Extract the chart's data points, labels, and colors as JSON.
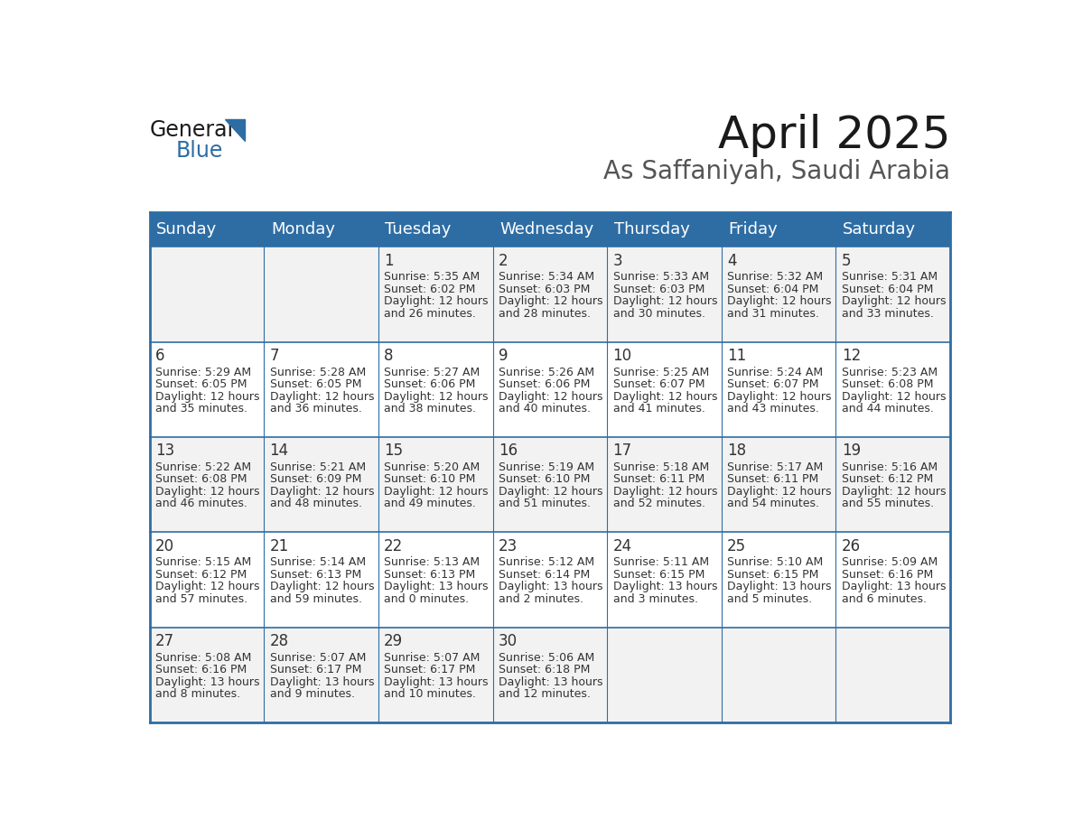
{
  "title": "April 2025",
  "subtitle": "As Saffaniyah, Saudi Arabia",
  "header_bg": "#2E6DA4",
  "header_text": "#FFFFFF",
  "row_bg_odd": "#F2F2F2",
  "row_bg_even": "#FFFFFF",
  "cell_text": "#333333",
  "day_number_color": "#333333",
  "border_color": "#2E6DA4",
  "days_of_week": [
    "Sunday",
    "Monday",
    "Tuesday",
    "Wednesday",
    "Thursday",
    "Friday",
    "Saturday"
  ],
  "weeks": [
    [
      {
        "day": "",
        "sunrise": "",
        "sunset": "",
        "daylight": ""
      },
      {
        "day": "",
        "sunrise": "",
        "sunset": "",
        "daylight": ""
      },
      {
        "day": "1",
        "sunrise": "5:35 AM",
        "sunset": "6:02 PM",
        "daylight": "12 hours\nand 26 minutes."
      },
      {
        "day": "2",
        "sunrise": "5:34 AM",
        "sunset": "6:03 PM",
        "daylight": "12 hours\nand 28 minutes."
      },
      {
        "day": "3",
        "sunrise": "5:33 AM",
        "sunset": "6:03 PM",
        "daylight": "12 hours\nand 30 minutes."
      },
      {
        "day": "4",
        "sunrise": "5:32 AM",
        "sunset": "6:04 PM",
        "daylight": "12 hours\nand 31 minutes."
      },
      {
        "day": "5",
        "sunrise": "5:31 AM",
        "sunset": "6:04 PM",
        "daylight": "12 hours\nand 33 minutes."
      }
    ],
    [
      {
        "day": "6",
        "sunrise": "5:29 AM",
        "sunset": "6:05 PM",
        "daylight": "12 hours\nand 35 minutes."
      },
      {
        "day": "7",
        "sunrise": "5:28 AM",
        "sunset": "6:05 PM",
        "daylight": "12 hours\nand 36 minutes."
      },
      {
        "day": "8",
        "sunrise": "5:27 AM",
        "sunset": "6:06 PM",
        "daylight": "12 hours\nand 38 minutes."
      },
      {
        "day": "9",
        "sunrise": "5:26 AM",
        "sunset": "6:06 PM",
        "daylight": "12 hours\nand 40 minutes."
      },
      {
        "day": "10",
        "sunrise": "5:25 AM",
        "sunset": "6:07 PM",
        "daylight": "12 hours\nand 41 minutes."
      },
      {
        "day": "11",
        "sunrise": "5:24 AM",
        "sunset": "6:07 PM",
        "daylight": "12 hours\nand 43 minutes."
      },
      {
        "day": "12",
        "sunrise": "5:23 AM",
        "sunset": "6:08 PM",
        "daylight": "12 hours\nand 44 minutes."
      }
    ],
    [
      {
        "day": "13",
        "sunrise": "5:22 AM",
        "sunset": "6:08 PM",
        "daylight": "12 hours\nand 46 minutes."
      },
      {
        "day": "14",
        "sunrise": "5:21 AM",
        "sunset": "6:09 PM",
        "daylight": "12 hours\nand 48 minutes."
      },
      {
        "day": "15",
        "sunrise": "5:20 AM",
        "sunset": "6:10 PM",
        "daylight": "12 hours\nand 49 minutes."
      },
      {
        "day": "16",
        "sunrise": "5:19 AM",
        "sunset": "6:10 PM",
        "daylight": "12 hours\nand 51 minutes."
      },
      {
        "day": "17",
        "sunrise": "5:18 AM",
        "sunset": "6:11 PM",
        "daylight": "12 hours\nand 52 minutes."
      },
      {
        "day": "18",
        "sunrise": "5:17 AM",
        "sunset": "6:11 PM",
        "daylight": "12 hours\nand 54 minutes."
      },
      {
        "day": "19",
        "sunrise": "5:16 AM",
        "sunset": "6:12 PM",
        "daylight": "12 hours\nand 55 minutes."
      }
    ],
    [
      {
        "day": "20",
        "sunrise": "5:15 AM",
        "sunset": "6:12 PM",
        "daylight": "12 hours\nand 57 minutes."
      },
      {
        "day": "21",
        "sunrise": "5:14 AM",
        "sunset": "6:13 PM",
        "daylight": "12 hours\nand 59 minutes."
      },
      {
        "day": "22",
        "sunrise": "5:13 AM",
        "sunset": "6:13 PM",
        "daylight": "13 hours\nand 0 minutes."
      },
      {
        "day": "23",
        "sunrise": "5:12 AM",
        "sunset": "6:14 PM",
        "daylight": "13 hours\nand 2 minutes."
      },
      {
        "day": "24",
        "sunrise": "5:11 AM",
        "sunset": "6:15 PM",
        "daylight": "13 hours\nand 3 minutes."
      },
      {
        "day": "25",
        "sunrise": "5:10 AM",
        "sunset": "6:15 PM",
        "daylight": "13 hours\nand 5 minutes."
      },
      {
        "day": "26",
        "sunrise": "5:09 AM",
        "sunset": "6:16 PM",
        "daylight": "13 hours\nand 6 minutes."
      }
    ],
    [
      {
        "day": "27",
        "sunrise": "5:08 AM",
        "sunset": "6:16 PM",
        "daylight": "13 hours\nand 8 minutes."
      },
      {
        "day": "28",
        "sunrise": "5:07 AM",
        "sunset": "6:17 PM",
        "daylight": "13 hours\nand 9 minutes."
      },
      {
        "day": "29",
        "sunrise": "5:07 AM",
        "sunset": "6:17 PM",
        "daylight": "13 hours\nand 10 minutes."
      },
      {
        "day": "30",
        "sunrise": "5:06 AM",
        "sunset": "6:18 PM",
        "daylight": "13 hours\nand 12 minutes."
      },
      {
        "day": "",
        "sunrise": "",
        "sunset": "",
        "daylight": ""
      },
      {
        "day": "",
        "sunrise": "",
        "sunset": "",
        "daylight": ""
      },
      {
        "day": "",
        "sunrise": "",
        "sunset": "",
        "daylight": ""
      }
    ]
  ],
  "logo_general_color": "#1a1a1a",
  "logo_blue_color": "#2E6DA4",
  "logo_triangle_color": "#2E6DA4",
  "title_color": "#1a1a1a",
  "subtitle_color": "#555555",
  "title_fontsize": 36,
  "subtitle_fontsize": 20,
  "header_fontsize": 13,
  "day_num_fontsize": 12,
  "cell_fontsize": 9
}
